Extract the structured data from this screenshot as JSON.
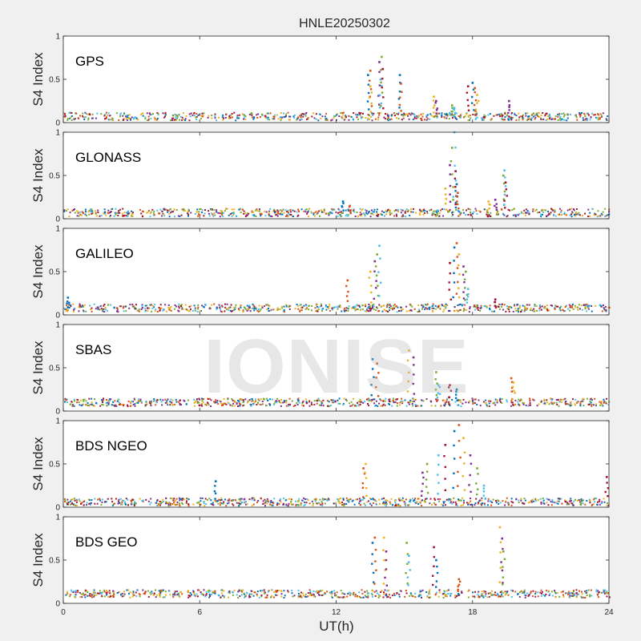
{
  "chart_data": {
    "type": "scatter",
    "title": "HNLE20250302",
    "xlabel": "UT(h)",
    "ylabel": "S4 Index",
    "xlim": [
      0,
      24
    ],
    "ylim": [
      0,
      1
    ],
    "xticks": [
      "0",
      "6",
      "12",
      "18",
      "24"
    ],
    "yticks": [
      "0",
      "0.5",
      "1"
    ],
    "watermark": "IONISE",
    "grid": false,
    "series_colors": [
      "#0072bd",
      "#d95319",
      "#edb120",
      "#7e2f8e",
      "#77ac30",
      "#4dbeee",
      "#a2142f"
    ],
    "panels": [
      {
        "name": "GPS",
        "baseline": 0.07,
        "points": [
          {
            "x": 13.4,
            "y": 0.55
          },
          {
            "x": 13.5,
            "y": 0.6
          },
          {
            "x": 13.5,
            "y": 0.42
          },
          {
            "x": 13.9,
            "y": 0.7
          },
          {
            "x": 14.0,
            "y": 0.76
          },
          {
            "x": 13.95,
            "y": 0.5
          },
          {
            "x": 14.05,
            "y": 0.62
          },
          {
            "x": 14.8,
            "y": 0.55
          },
          {
            "x": 14.85,
            "y": 0.45
          },
          {
            "x": 16.3,
            "y": 0.3
          },
          {
            "x": 16.4,
            "y": 0.25
          },
          {
            "x": 17.1,
            "y": 0.2
          },
          {
            "x": 17.2,
            "y": 0.17
          },
          {
            "x": 17.8,
            "y": 0.42
          },
          {
            "x": 18.0,
            "y": 0.46
          },
          {
            "x": 18.1,
            "y": 0.4
          },
          {
            "x": 18.2,
            "y": 0.32
          },
          {
            "x": 19.6,
            "y": 0.25
          }
        ]
      },
      {
        "name": "GLONASS",
        "baseline": 0.07,
        "points": [
          {
            "x": 12.3,
            "y": 0.2
          },
          {
            "x": 12.6,
            "y": 0.15
          },
          {
            "x": 16.8,
            "y": 0.35
          },
          {
            "x": 17.0,
            "y": 0.62
          },
          {
            "x": 17.1,
            "y": 0.82
          },
          {
            "x": 17.2,
            "y": 1.0
          },
          {
            "x": 17.25,
            "y": 0.55
          },
          {
            "x": 17.3,
            "y": 0.4
          },
          {
            "x": 17.35,
            "y": 0.3
          },
          {
            "x": 18.7,
            "y": 0.2
          },
          {
            "x": 19.0,
            "y": 0.22
          },
          {
            "x": 19.35,
            "y": 0.5
          },
          {
            "x": 19.4,
            "y": 0.56
          },
          {
            "x": 19.45,
            "y": 0.42
          }
        ]
      },
      {
        "name": "GALILEO",
        "baseline": 0.08,
        "points": [
          {
            "x": 0.2,
            "y": 0.2
          },
          {
            "x": 12.5,
            "y": 0.4
          },
          {
            "x": 13.5,
            "y": 0.5
          },
          {
            "x": 13.7,
            "y": 0.62
          },
          {
            "x": 13.8,
            "y": 0.7
          },
          {
            "x": 13.9,
            "y": 0.8
          },
          {
            "x": 17.0,
            "y": 0.6
          },
          {
            "x": 17.2,
            "y": 0.78
          },
          {
            "x": 17.3,
            "y": 0.83
          },
          {
            "x": 17.4,
            "y": 0.7
          },
          {
            "x": 17.6,
            "y": 0.56
          },
          {
            "x": 17.7,
            "y": 0.5
          },
          {
            "x": 17.8,
            "y": 0.3
          },
          {
            "x": 19.0,
            "y": 0.18
          }
        ]
      },
      {
        "name": "SBAS",
        "baseline": 0.1,
        "points": [
          {
            "x": 13.6,
            "y": 0.6
          },
          {
            "x": 13.8,
            "y": 0.55
          },
          {
            "x": 15.2,
            "y": 0.7
          },
          {
            "x": 15.4,
            "y": 0.62
          },
          {
            "x": 16.4,
            "y": 0.45
          },
          {
            "x": 16.5,
            "y": 0.3
          },
          {
            "x": 17.0,
            "y": 0.3
          },
          {
            "x": 17.3,
            "y": 0.25
          },
          {
            "x": 19.7,
            "y": 0.38
          },
          {
            "x": 19.8,
            "y": 0.33
          }
        ]
      },
      {
        "name": "BDS NGEO",
        "baseline": 0.06,
        "points": [
          {
            "x": 6.7,
            "y": 0.3
          },
          {
            "x": 13.2,
            "y": 0.45
          },
          {
            "x": 13.3,
            "y": 0.5
          },
          {
            "x": 15.8,
            "y": 0.4
          },
          {
            "x": 16.0,
            "y": 0.5
          },
          {
            "x": 16.5,
            "y": 0.6
          },
          {
            "x": 16.8,
            "y": 0.72
          },
          {
            "x": 17.2,
            "y": 0.88
          },
          {
            "x": 17.4,
            "y": 0.95
          },
          {
            "x": 17.6,
            "y": 0.8
          },
          {
            "x": 17.9,
            "y": 0.6
          },
          {
            "x": 18.2,
            "y": 0.45
          },
          {
            "x": 18.5,
            "y": 0.25
          },
          {
            "x": 23.9,
            "y": 0.35
          }
        ]
      },
      {
        "name": "BDS GEO",
        "baseline": 0.11,
        "points": [
          {
            "x": 13.6,
            "y": 0.7
          },
          {
            "x": 13.7,
            "y": 0.76
          },
          {
            "x": 14.1,
            "y": 0.76
          },
          {
            "x": 14.2,
            "y": 0.6
          },
          {
            "x": 15.1,
            "y": 0.7
          },
          {
            "x": 15.2,
            "y": 0.55
          },
          {
            "x": 16.3,
            "y": 0.65
          },
          {
            "x": 16.4,
            "y": 0.5
          },
          {
            "x": 17.4,
            "y": 0.28
          },
          {
            "x": 19.2,
            "y": 0.88
          },
          {
            "x": 19.3,
            "y": 0.75
          },
          {
            "x": 19.35,
            "y": 0.6
          }
        ]
      }
    ]
  }
}
